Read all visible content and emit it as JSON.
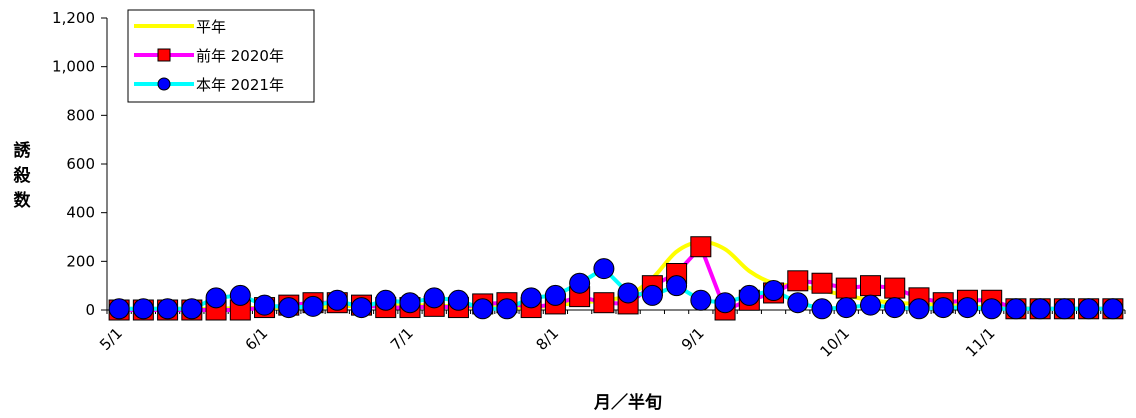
{
  "chart_data": {
    "type": "line",
    "xlabel": "月／半旬",
    "ylabel": "誘殺数",
    "ylim": [
      0,
      1200
    ],
    "yticks": [
      "0",
      "200",
      "400",
      "600",
      "800",
      "1,000",
      "1,200"
    ],
    "ytick_values": [
      0,
      200,
      400,
      600,
      800,
      1000,
      1200
    ],
    "xtick_labels": [
      "5/1",
      "6/1",
      "7/1",
      "8/1",
      "9/1",
      "10/1",
      "11/1"
    ],
    "xtick_index": [
      0,
      6,
      12,
      18,
      24,
      30,
      36
    ],
    "n_points": 42,
    "grid": false,
    "legend_position": "top-left",
    "series": [
      {
        "name": "平年",
        "color": "#ffff00",
        "marker": "none",
        "values": [
          5,
          5,
          5,
          5,
          5,
          8,
          8,
          10,
          12,
          15,
          18,
          22,
          20,
          18,
          15,
          12,
          10,
          10,
          20,
          30,
          40,
          60,
          130,
          240,
          280,
          250,
          160,
          110,
          100,
          80,
          60,
          40,
          30,
          25,
          20,
          15,
          10,
          8,
          5,
          5,
          5,
          5
        ]
      },
      {
        "name": "前年 2020年",
        "color": "#ff00ff",
        "marker": "square",
        "marker_color": "#ff0000",
        "values": [
          0,
          0,
          0,
          0,
          0,
          0,
          10,
          20,
          30,
          30,
          20,
          10,
          10,
          15,
          10,
          25,
          30,
          10,
          25,
          55,
          30,
          25,
          100,
          150,
          260,
          0,
          40,
          70,
          120,
          110,
          90,
          100,
          90,
          50,
          30,
          40,
          40,
          5,
          5,
          5,
          5,
          5
        ]
      },
      {
        "name": "本年 2021年",
        "color": "#00ffff",
        "marker": "circle",
        "marker_color": "#0000ff",
        "values": [
          5,
          5,
          5,
          5,
          50,
          60,
          20,
          10,
          15,
          40,
          10,
          40,
          30,
          50,
          40,
          5,
          5,
          50,
          60,
          110,
          170,
          70,
          60,
          100,
          40,
          30,
          60,
          80,
          30,
          5,
          10,
          20,
          10,
          5,
          10,
          10,
          5,
          5,
          5,
          5,
          5,
          5
        ]
      }
    ]
  }
}
